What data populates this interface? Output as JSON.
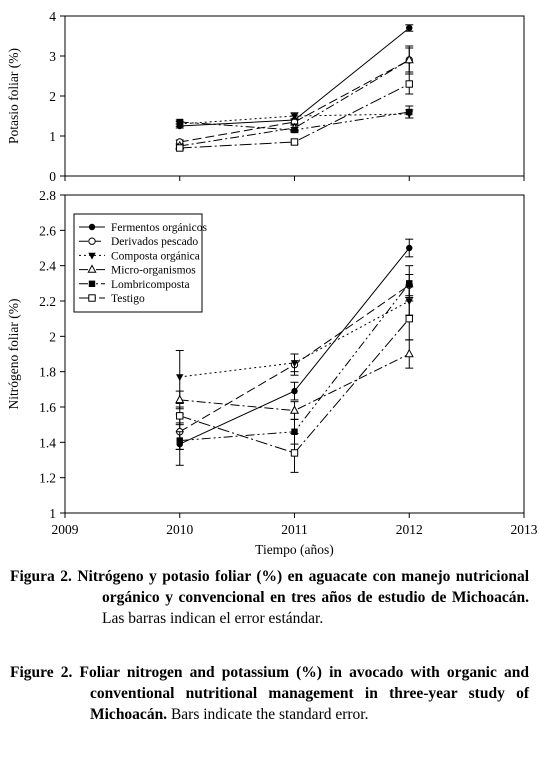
{
  "chart_data": [
    {
      "type": "line",
      "ylabel": "Potasio foliar (%)",
      "ylim": [
        0,
        4
      ],
      "yticks": [
        "0",
        "1",
        "2",
        "3",
        "4"
      ],
      "x": [
        2010,
        2011,
        2012
      ],
      "series": [
        {
          "name": "Fermentos orgánicos",
          "values": [
            1.25,
            1.4,
            3.7
          ],
          "errors": [
            0.05,
            0.1,
            0.08
          ]
        },
        {
          "name": "Derivados pescado",
          "values": [
            0.85,
            1.35,
            2.9
          ],
          "errors": [
            0.05,
            0.08,
            0.3
          ]
        },
        {
          "name": "Composta orgánica",
          "values": [
            1.3,
            1.5,
            1.55
          ],
          "errors": [
            0.06,
            0.08,
            0.1
          ]
        },
        {
          "name": "Micro-organismos",
          "values": [
            0.75,
            1.2,
            2.9
          ],
          "errors": [
            0.05,
            0.1,
            0.35
          ]
        },
        {
          "name": "Lombricomposta",
          "values": [
            1.35,
            1.15,
            1.6
          ],
          "errors": [
            0.05,
            0.06,
            0.15
          ]
        },
        {
          "name": "Testigo",
          "values": [
            0.7,
            0.85,
            2.3
          ],
          "errors": [
            0.05,
            0.05,
            0.25
          ]
        }
      ]
    },
    {
      "type": "line",
      "xlabel": "Tiempo (años)",
      "ylabel": "Nitrógeno foliar (%)",
      "xlim": [
        2009,
        2013
      ],
      "ylim": [
        1,
        2.8
      ],
      "xticks": [
        "2009",
        "2010",
        "2011",
        "2012",
        "2013"
      ],
      "yticks": [
        "1",
        "1.2",
        "1.4",
        "1.6",
        "1.8",
        "2",
        "2.2",
        "2.4",
        "2.6",
        "2.8"
      ],
      "x": [
        2010,
        2011,
        2012
      ],
      "series": [
        {
          "name": "Fermentos orgánicos",
          "values": [
            1.39,
            1.69,
            2.5
          ],
          "errors": [
            0.12,
            0.05,
            0.05
          ]
        },
        {
          "name": "Derivados pescado",
          "values": [
            1.46,
            1.84,
            2.29
          ],
          "errors": [
            0.1,
            0.06,
            0.06
          ]
        },
        {
          "name": "Composta orgánica",
          "values": [
            1.77,
            1.85,
            2.2
          ],
          "errors": [
            0.15,
            0.05,
            0.08
          ]
        },
        {
          "name": "Micro-organismos",
          "values": [
            1.64,
            1.58,
            1.9
          ],
          "errors": [
            0.05,
            0.05,
            0.08
          ]
        },
        {
          "name": "Lombricomposta",
          "values": [
            1.41,
            1.46,
            2.3
          ],
          "errors": [
            0.05,
            0.07,
            0.1
          ]
        },
        {
          "name": "Testigo",
          "values": [
            1.55,
            1.34,
            2.1
          ],
          "errors": [
            0.05,
            0.11,
            0.12
          ]
        }
      ]
    }
  ],
  "caption_es": {
    "label": "Figura 2.",
    "bold_text": "Nitrógeno y potasio foliar (%) en aguacate con manejo nutricional orgánico y convencional en tres años de estudio de Michoacán.",
    "text": "Las barras indican el error estándar."
  },
  "caption_en": {
    "label": "Figure 2.",
    "bold_text": "Foliar nitrogen and potassium (%) in avocado with organic and conventional nutritional management in three-year study of Michoacán.",
    "text": "Bars indicate the standard error."
  }
}
